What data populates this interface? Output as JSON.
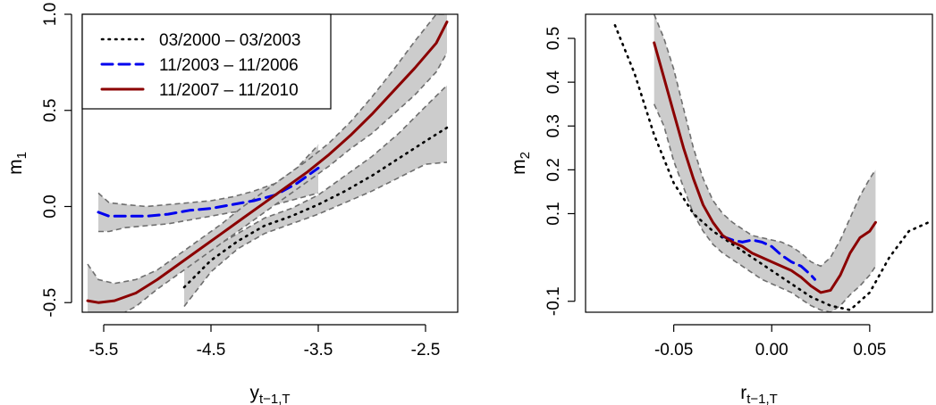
{
  "chart_data": [
    {
      "type": "line",
      "title": "",
      "xlabel": "y",
      "xlabel_sub": "t−1,T",
      "ylabel": "m",
      "ylabel_sub": "1",
      "xlim": [
        -5.7,
        -2.2
      ],
      "ylim": [
        -0.55,
        1.0
      ],
      "xticks": [
        -5.5,
        -4.5,
        -3.5,
        -2.5
      ],
      "xtick_labels": [
        "-5.5",
        "-4.5",
        "-3.5",
        "-2.5"
      ],
      "yticks": [
        -0.5,
        0.0,
        0.5,
        1.0
      ],
      "ytick_labels": [
        "-0.5",
        "0.0",
        "0.5",
        "1.0"
      ],
      "grid": false,
      "legend": {
        "placement": "top-left",
        "entries": [
          "03/2000 – 03/2003",
          "11/2003 – 11/2006",
          "11/2007 – 11/2010"
        ]
      },
      "series": [
        {
          "name": "03/2000 – 03/2003",
          "style": "dotted",
          "color": "#000000",
          "x": [
            -4.75,
            -4.5,
            -4.25,
            -4.0,
            -3.75,
            -3.5,
            -3.25,
            -3.0,
            -2.75,
            -2.5,
            -2.3
          ],
          "y": [
            -0.42,
            -0.28,
            -0.18,
            -0.1,
            -0.05,
            0.01,
            0.08,
            0.16,
            0.25,
            0.34,
            0.41
          ],
          "band_lower": [
            -0.52,
            -0.34,
            -0.22,
            -0.14,
            -0.09,
            -0.04,
            0.02,
            0.08,
            0.15,
            0.22,
            0.23
          ],
          "band_upper": [
            -0.3,
            -0.22,
            -0.14,
            -0.06,
            -0.01,
            0.06,
            0.16,
            0.26,
            0.38,
            0.52,
            0.63
          ]
        },
        {
          "name": "11/2003 – 11/2006",
          "style": "dashed",
          "color": "#0000ee",
          "x": [
            -5.55,
            -5.45,
            -5.3,
            -5.1,
            -4.9,
            -4.7,
            -4.5,
            -4.3,
            -4.1,
            -3.9,
            -3.7,
            -3.5
          ],
          "y": [
            -0.03,
            -0.05,
            -0.05,
            -0.05,
            -0.04,
            -0.02,
            -0.01,
            0.01,
            0.03,
            0.06,
            0.12,
            0.2
          ],
          "band_lower": [
            -0.13,
            -0.13,
            -0.11,
            -0.1,
            -0.09,
            -0.07,
            -0.05,
            -0.03,
            -0.02,
            0.01,
            0.04,
            0.07
          ],
          "band_upper": [
            0.07,
            0.02,
            0.01,
            0.0,
            0.01,
            0.02,
            0.03,
            0.05,
            0.08,
            0.12,
            0.2,
            0.32
          ]
        },
        {
          "name": "11/2007 – 11/2010",
          "style": "solid",
          "color": "#8b0000",
          "x": [
            -5.65,
            -5.55,
            -5.4,
            -5.2,
            -5.0,
            -4.8,
            -4.6,
            -4.4,
            -4.2,
            -4.0,
            -3.8,
            -3.6,
            -3.4,
            -3.2,
            -3.0,
            -2.8,
            -2.6,
            -2.4,
            -2.3
          ],
          "y": [
            -0.49,
            -0.5,
            -0.49,
            -0.45,
            -0.38,
            -0.3,
            -0.22,
            -0.14,
            -0.06,
            0.02,
            0.1,
            0.18,
            0.27,
            0.37,
            0.48,
            0.6,
            0.72,
            0.85,
            0.96
          ],
          "band_lower": [
            -0.6,
            -0.6,
            -0.58,
            -0.52,
            -0.43,
            -0.35,
            -0.27,
            -0.19,
            -0.11,
            -0.03,
            0.05,
            0.13,
            0.21,
            0.3,
            0.38,
            0.48,
            0.58,
            0.7,
            0.8
          ],
          "band_upper": [
            -0.3,
            -0.38,
            -0.4,
            -0.38,
            -0.33,
            -0.25,
            -0.17,
            -0.09,
            0.0,
            0.08,
            0.16,
            0.24,
            0.33,
            0.44,
            0.57,
            0.71,
            0.86,
            1.0,
            1.0
          ]
        }
      ]
    },
    {
      "type": "line",
      "title": "",
      "xlabel": "r",
      "xlabel_sub": "t−1,T",
      "ylabel": "m",
      "ylabel_sub": "2",
      "xlim": [
        -0.095,
        0.082
      ],
      "ylim": [
        -0.125,
        0.555
      ],
      "xticks": [
        -0.05,
        0.0,
        0.05
      ],
      "xtick_labels": [
        "-0.05",
        "0.00",
        "0.05"
      ],
      "yticks": [
        -0.1,
        0.1,
        0.2,
        0.3,
        0.4,
        0.5
      ],
      "ytick_labels": [
        "-0.1",
        "0.1",
        "0.2",
        "0.3",
        "0.4",
        "0.5"
      ],
      "grid": false,
      "legend": null,
      "series": [
        {
          "name": "03/2000 – 03/2003",
          "style": "dotted",
          "color": "#000000",
          "x": [
            -0.08,
            -0.07,
            -0.06,
            -0.05,
            -0.04,
            -0.03,
            -0.02,
            -0.01,
            0.0,
            0.01,
            0.02,
            0.03,
            0.04,
            0.05,
            0.06,
            0.07,
            0.08
          ],
          "y": [
            0.53,
            0.42,
            0.28,
            0.17,
            0.1,
            0.06,
            0.03,
            0.0,
            -0.03,
            -0.06,
            -0.09,
            -0.11,
            -0.12,
            -0.08,
            0.0,
            0.06,
            0.08
          ]
        },
        {
          "name": "11/2003 – 11/2006",
          "style": "dashed",
          "color": "#0000ee",
          "x": [
            -0.025,
            -0.02,
            -0.015,
            -0.01,
            -0.005,
            0.0,
            0.005,
            0.01,
            0.015,
            0.02,
            0.022
          ],
          "y": [
            0.048,
            0.04,
            0.035,
            0.04,
            0.035,
            0.025,
            0.005,
            -0.01,
            -0.02,
            -0.04,
            -0.05
          ]
        },
        {
          "name": "11/2007 – 11/2010",
          "style": "solid",
          "color": "#8b0000",
          "x": [
            -0.06,
            -0.055,
            -0.05,
            -0.045,
            -0.04,
            -0.035,
            -0.03,
            -0.025,
            -0.02,
            -0.015,
            -0.01,
            -0.005,
            0.0,
            0.005,
            0.01,
            0.015,
            0.02,
            0.025,
            0.03,
            0.035,
            0.04,
            0.045,
            0.05,
            0.053
          ],
          "y": [
            0.49,
            0.41,
            0.33,
            0.25,
            0.18,
            0.12,
            0.08,
            0.05,
            0.035,
            0.025,
            0.01,
            0.0,
            -0.01,
            -0.02,
            -0.03,
            -0.045,
            -0.065,
            -0.08,
            -0.075,
            -0.04,
            0.01,
            0.045,
            0.06,
            0.08
          ]
        }
      ],
      "bands": [
        {
          "series": "11/2007 – 11/2010",
          "x": [
            -0.06,
            -0.055,
            -0.05,
            -0.045,
            -0.04,
            -0.035,
            -0.03,
            -0.025,
            -0.02,
            -0.015,
            -0.01,
            -0.005,
            0.0,
            0.005,
            0.01,
            0.015,
            0.02,
            0.025,
            0.03,
            0.035,
            0.04,
            0.045,
            0.05,
            0.053
          ],
          "lower": [
            0.35,
            0.3,
            0.22,
            0.16,
            0.1,
            0.06,
            0.03,
            0.01,
            -0.005,
            -0.02,
            -0.035,
            -0.05,
            -0.06,
            -0.07,
            -0.08,
            -0.095,
            -0.11,
            -0.12,
            -0.125,
            -0.11,
            -0.085,
            -0.065,
            -0.04,
            -0.02
          ],
          "upper": [
            0.555,
            0.5,
            0.43,
            0.34,
            0.25,
            0.18,
            0.13,
            0.1,
            0.08,
            0.065,
            0.05,
            0.045,
            0.04,
            0.035,
            0.025,
            0.01,
            -0.01,
            -0.02,
            0.0,
            0.04,
            0.09,
            0.14,
            0.18,
            0.2
          ]
        }
      ]
    }
  ]
}
